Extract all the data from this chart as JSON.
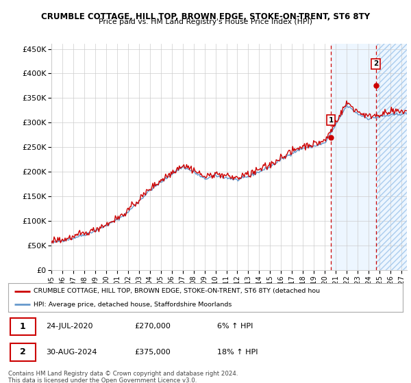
{
  "title1": "CRUMBLE COTTAGE, HILL TOP, BROWN EDGE, STOKE-ON-TRENT, ST6 8TY",
  "title2": "Price paid vs. HM Land Registry's House Price Index (HPI)",
  "ylim": [
    0,
    460000
  ],
  "yticks": [
    0,
    50000,
    100000,
    150000,
    200000,
    250000,
    300000,
    350000,
    400000,
    450000
  ],
  "ytick_labels": [
    "£0",
    "£50K",
    "£100K",
    "£150K",
    "£200K",
    "£250K",
    "£300K",
    "£350K",
    "£400K",
    "£450K"
  ],
  "xlim_start": 1995.0,
  "xlim_end": 2027.5,
  "xticks": [
    1995,
    1996,
    1997,
    1998,
    1999,
    2000,
    2001,
    2002,
    2003,
    2004,
    2005,
    2006,
    2007,
    2008,
    2009,
    2010,
    2011,
    2012,
    2013,
    2014,
    2015,
    2016,
    2017,
    2018,
    2019,
    2020,
    2021,
    2022,
    2023,
    2024,
    2025,
    2026,
    2027
  ],
  "line1_color": "#cc0000",
  "line2_color": "#6699cc",
  "shade_color": "#ddeeff",
  "hatch_color": "#aaccee",
  "dashed_vline_color": "#cc0000",
  "sale1_x": 2020.56,
  "sale1_y": 270000,
  "sale1_label": "1",
  "sale2_x": 2024.66,
  "sale2_y": 375000,
  "sale2_label": "2",
  "legend_line1": "CRUMBLE COTTAGE, HILL TOP, BROWN EDGE, STOKE-ON-TRENT, ST6 8TY (detached hou",
  "legend_line2": "HPI: Average price, detached house, Staffordshire Moorlands",
  "note1_date": "24-JUL-2020",
  "note1_price": "£270,000",
  "note1_hpi": "6% ↑ HPI",
  "note2_date": "30-AUG-2024",
  "note2_price": "£375,000",
  "note2_hpi": "18% ↑ HPI",
  "footnote": "Contains HM Land Registry data © Crown copyright and database right 2024.\nThis data is licensed under the Open Government Licence v3.0.",
  "background_color": "#ffffff",
  "grid_color": "#cccccc"
}
